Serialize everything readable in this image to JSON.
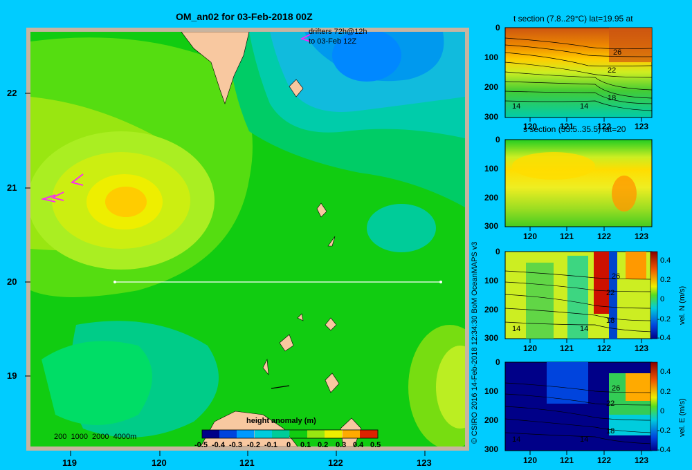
{
  "main_map": {
    "title": "OM_an02 for 03-Feb-2018 00Z",
    "drifter_note_line1": "drifters 72h@12h",
    "drifter_note_line2": "to 03-Feb 12Z",
    "lat_ticks": [
      "22",
      "21",
      "20",
      "19"
    ],
    "lon_ticks": [
      "119",
      "120",
      "121",
      "122",
      "123"
    ],
    "depth_legend": "200  1000  2000  4000m",
    "colorbar_title": "height anomaly (m)",
    "colorbar_ticks": [
      "-0.5",
      "-0.4",
      "-0.3",
      "-0.2",
      "-0.1",
      "0",
      "0.1",
      "0.2",
      "0.3",
      "0.4",
      "0.5"
    ]
  },
  "credit": "© CSIRO 2016   14-Feb-2018 12:34:30 BoM OceanMAPS v3",
  "panels": {
    "t_section": {
      "title": "t section (7.8..29°C) lat=19.95 at",
      "contour_labels": [
        "26",
        "22",
        "18",
        "14",
        "14"
      ]
    },
    "s_section": {
      "title": "s section (33.5..35.5) lat=20"
    },
    "vn_section": {
      "ylabel": "vel. N (m/s)",
      "contour_labels": [
        "26",
        "22",
        "18",
        "14",
        "14"
      ],
      "cb_ticks": [
        "0.4",
        "0.2",
        "0",
        "-0.2",
        "-0.4"
      ]
    },
    "ve_section": {
      "ylabel": "vel. E (m/s)",
      "contour_labels": [
        "26",
        "22",
        "18",
        "14",
        "14"
      ],
      "cb_ticks": [
        "0.4",
        "0.2",
        "0",
        "-0.2",
        "-0.4"
      ]
    },
    "depth_ticks": [
      "0",
      "100",
      "200",
      "300"
    ],
    "lon_ticks": [
      "120",
      "121",
      "122",
      "123"
    ]
  },
  "colors": {
    "background": "#00ccff",
    "land": "#f8c8a0",
    "frame": "#c8b4a0"
  }
}
